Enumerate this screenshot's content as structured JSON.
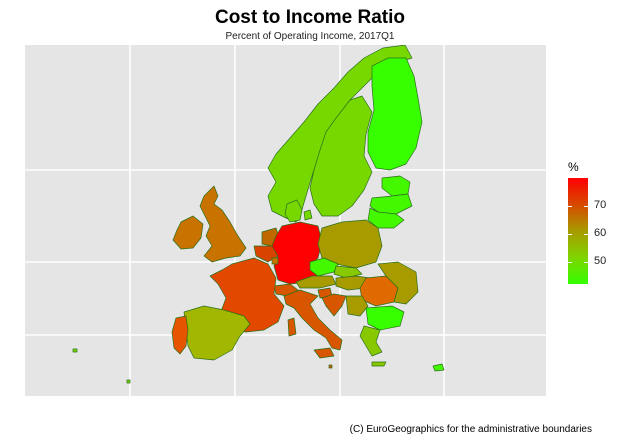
{
  "title": "Cost to Income Ratio",
  "subtitle": "Percent of Operating Income, 2017Q1",
  "caption": "(C) EuroGeographics for the administrative boundaries",
  "legend": {
    "title": "%",
    "ticks": [
      {
        "label": "70",
        "value": 70
      },
      {
        "label": "60",
        "value": 60
      },
      {
        "label": "50",
        "value": 50
      }
    ],
    "range": [
      42,
      80
    ],
    "colors": [
      "#ff0000",
      "#d64a00",
      "#a89b00",
      "#7fd400",
      "#33ff00"
    ]
  },
  "colors": {
    "panel": "#e5e5e5",
    "grid": "#ffffff",
    "border": "#2a6f1a"
  }
}
